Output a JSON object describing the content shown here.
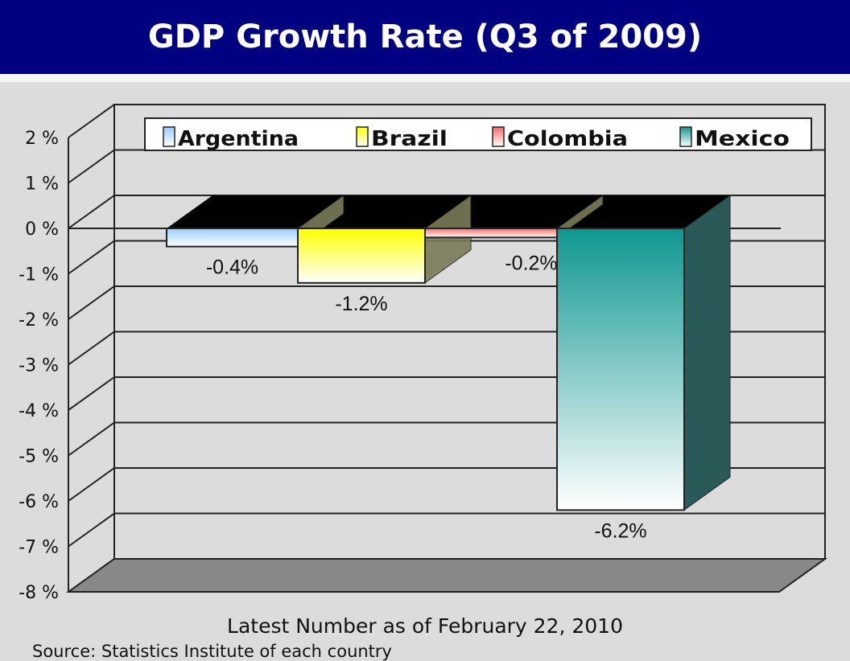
{
  "chart_data": {
    "type": "bar",
    "title": "GDP Growth Rate (Q3 of 2009)",
    "categories": [
      "Argentina",
      "Brazil",
      "Colombia",
      "Mexico"
    ],
    "series": [
      {
        "name": "Argentina",
        "value": -0.4,
        "label": "-0.4%",
        "color": "#99ccff"
      },
      {
        "name": "Brazil",
        "value": -1.2,
        "label": "-1.2%",
        "color": "#ffff00"
      },
      {
        "name": "Colombia",
        "value": -0.2,
        "label": "-0.2%",
        "color": "#ff6666"
      },
      {
        "name": "Mexico",
        "value": -6.2,
        "label": "-6.2%",
        "color": "#0f9690"
      }
    ],
    "yticks": [
      "2 %",
      "1 %",
      "0 %",
      "-1 %",
      "-2 %",
      "-3 %",
      "-4 %",
      "-5 %",
      "-6 %",
      "-7 %",
      "-8 %"
    ],
    "ylim": [
      -8,
      2
    ],
    "ylabel": "",
    "xlabel": "",
    "legend_position": "top",
    "grid": true,
    "note": "Latest Number as of February 22, 2010",
    "source": "Source: Statistics Institute of each country"
  }
}
